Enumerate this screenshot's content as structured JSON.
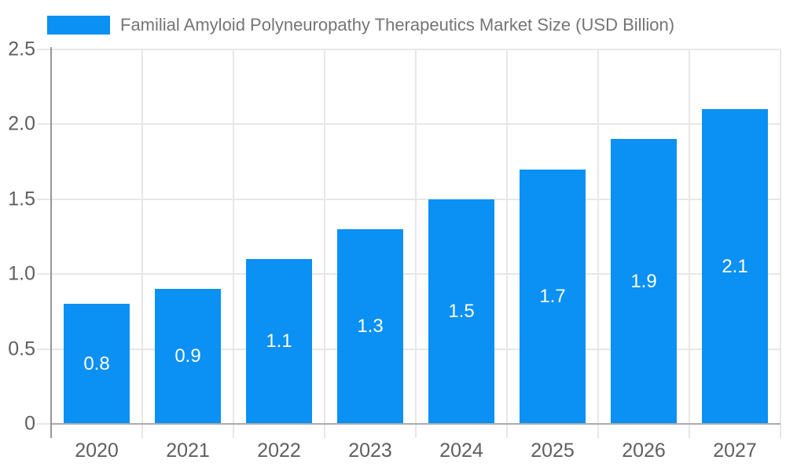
{
  "chart_data": {
    "type": "bar",
    "title": "Familial Amyloid Polyneuropathy Therapeutics Market Size (USD Billion)",
    "categories": [
      "2020",
      "2021",
      "2022",
      "2023",
      "2024",
      "2025",
      "2026",
      "2027"
    ],
    "values": [
      0.8,
      0.9,
      1.1,
      1.3,
      1.5,
      1.7,
      1.9,
      2.1
    ],
    "bar_labels": [
      "0.8",
      "0.9",
      "1.1",
      "1.3",
      "1.5",
      "1.7",
      "1.9",
      "2.1"
    ],
    "xlabel": "",
    "ylabel": "",
    "ylim": [
      0,
      2.5
    ],
    "y_ticks": [
      {
        "value": 0,
        "label": "0"
      },
      {
        "value": 0.5,
        "label": "0.5"
      },
      {
        "value": 1.0,
        "label": "1.0"
      },
      {
        "value": 1.5,
        "label": "1.5"
      },
      {
        "value": 2.0,
        "label": "2.0"
      },
      {
        "value": 2.5,
        "label": "2.5"
      }
    ],
    "grid": true,
    "legend_position": "top-left"
  },
  "colors": {
    "bar": "#0B90F4",
    "bar_label": "#ffffff",
    "legend_text": "#757575",
    "axis_text": "#5f5f5f",
    "gridline": "#e7e7e7",
    "tick": "#e0e0e0",
    "baseline": "#ababab",
    "axis_line": "#979797",
    "background": "#ffffff"
  }
}
